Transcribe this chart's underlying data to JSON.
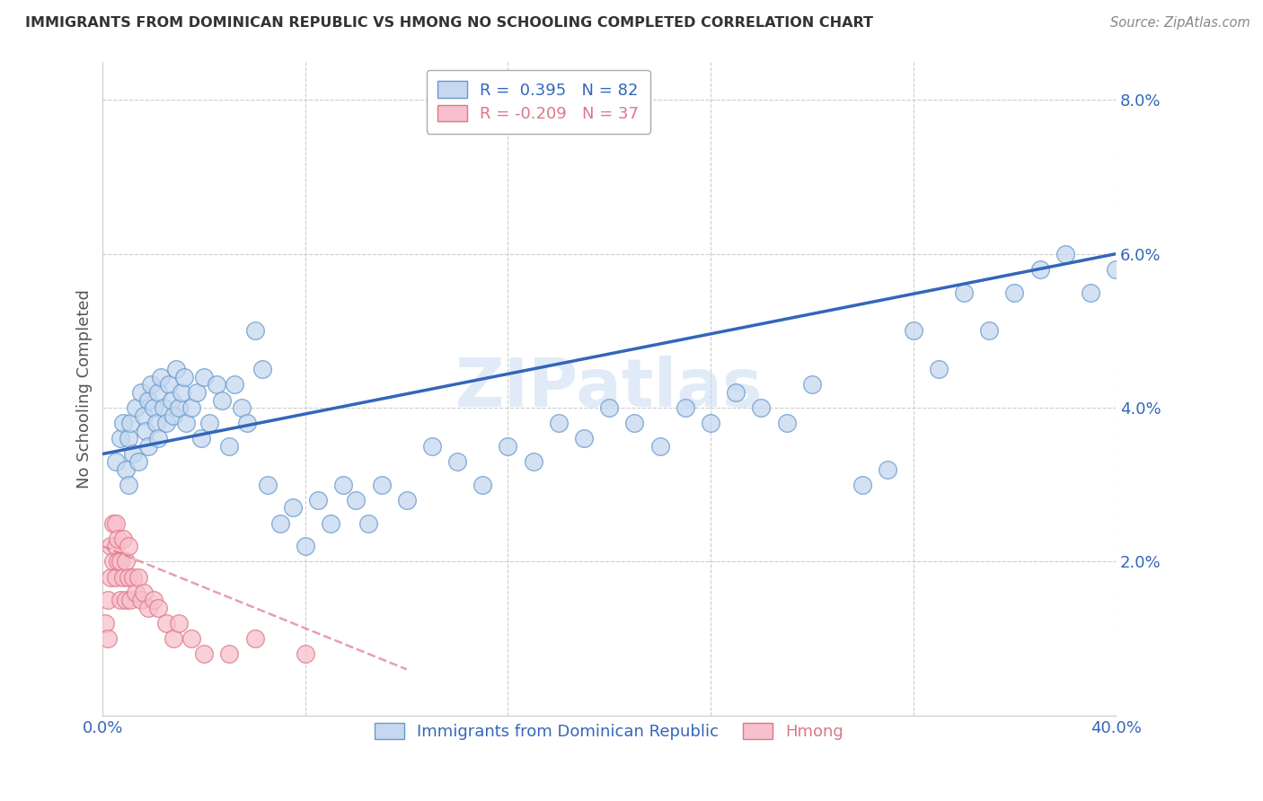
{
  "title": "IMMIGRANTS FROM DOMINICAN REPUBLIC VS HMONG NO SCHOOLING COMPLETED CORRELATION CHART",
  "source": "Source: ZipAtlas.com",
  "ylabel": "No Schooling Completed",
  "xlim": [
    0.0,
    0.4
  ],
  "ylim": [
    0.0,
    0.085
  ],
  "blue_R": 0.395,
  "blue_N": 82,
  "pink_R": -0.209,
  "pink_N": 37,
  "blue_color": "#c5d8f0",
  "blue_edge_color": "#6699cc",
  "blue_line_color": "#3366bb",
  "pink_color": "#f8c0cc",
  "pink_edge_color": "#dd7788",
  "pink_line_color": "#cc4466",
  "watermark": "ZIPatlas",
  "blue_x": [
    0.005,
    0.007,
    0.008,
    0.009,
    0.01,
    0.01,
    0.011,
    0.012,
    0.013,
    0.014,
    0.015,
    0.016,
    0.017,
    0.018,
    0.018,
    0.019,
    0.02,
    0.021,
    0.022,
    0.022,
    0.023,
    0.024,
    0.025,
    0.026,
    0.027,
    0.028,
    0.029,
    0.03,
    0.031,
    0.032,
    0.033,
    0.035,
    0.037,
    0.039,
    0.04,
    0.042,
    0.045,
    0.047,
    0.05,
    0.052,
    0.055,
    0.057,
    0.06,
    0.063,
    0.065,
    0.07,
    0.075,
    0.08,
    0.085,
    0.09,
    0.095,
    0.1,
    0.105,
    0.11,
    0.12,
    0.13,
    0.14,
    0.15,
    0.16,
    0.17,
    0.18,
    0.19,
    0.2,
    0.21,
    0.22,
    0.23,
    0.24,
    0.25,
    0.26,
    0.27,
    0.28,
    0.3,
    0.31,
    0.32,
    0.33,
    0.34,
    0.35,
    0.36,
    0.37,
    0.38,
    0.39,
    0.4
  ],
  "blue_y": [
    0.033,
    0.036,
    0.038,
    0.032,
    0.036,
    0.03,
    0.038,
    0.034,
    0.04,
    0.033,
    0.042,
    0.039,
    0.037,
    0.041,
    0.035,
    0.043,
    0.04,
    0.038,
    0.042,
    0.036,
    0.044,
    0.04,
    0.038,
    0.043,
    0.041,
    0.039,
    0.045,
    0.04,
    0.042,
    0.044,
    0.038,
    0.04,
    0.042,
    0.036,
    0.044,
    0.038,
    0.043,
    0.041,
    0.035,
    0.043,
    0.04,
    0.038,
    0.05,
    0.045,
    0.03,
    0.025,
    0.027,
    0.022,
    0.028,
    0.025,
    0.03,
    0.028,
    0.025,
    0.03,
    0.028,
    0.035,
    0.033,
    0.03,
    0.035,
    0.033,
    0.038,
    0.036,
    0.04,
    0.038,
    0.035,
    0.04,
    0.038,
    0.042,
    0.04,
    0.038,
    0.043,
    0.03,
    0.032,
    0.05,
    0.045,
    0.055,
    0.05,
    0.055,
    0.058,
    0.06,
    0.055,
    0.058
  ],
  "pink_x": [
    0.001,
    0.002,
    0.002,
    0.003,
    0.003,
    0.004,
    0.004,
    0.005,
    0.005,
    0.005,
    0.006,
    0.006,
    0.007,
    0.007,
    0.008,
    0.008,
    0.009,
    0.009,
    0.01,
    0.01,
    0.011,
    0.012,
    0.013,
    0.014,
    0.015,
    0.016,
    0.018,
    0.02,
    0.022,
    0.025,
    0.028,
    0.03,
    0.035,
    0.04,
    0.05,
    0.06,
    0.08
  ],
  "pink_y": [
    0.012,
    0.01,
    0.015,
    0.018,
    0.022,
    0.02,
    0.025,
    0.018,
    0.022,
    0.025,
    0.02,
    0.023,
    0.015,
    0.02,
    0.018,
    0.023,
    0.015,
    0.02,
    0.018,
    0.022,
    0.015,
    0.018,
    0.016,
    0.018,
    0.015,
    0.016,
    0.014,
    0.015,
    0.014,
    0.012,
    0.01,
    0.012,
    0.01,
    0.008,
    0.008,
    0.01,
    0.008
  ],
  "blue_line_x0": 0.0,
  "blue_line_y0": 0.034,
  "blue_line_x1": 0.4,
  "blue_line_y1": 0.06,
  "pink_line_x0": 0.0,
  "pink_line_y0": 0.022,
  "pink_line_x1": 0.12,
  "pink_line_y1": 0.006
}
